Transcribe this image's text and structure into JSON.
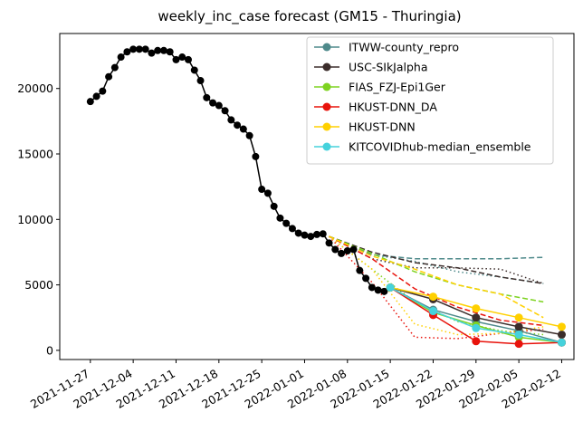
{
  "chart_data": {
    "type": "line",
    "title": "weekly_inc_case forecast (GM15 - Thuringia)",
    "xlabel": "",
    "ylabel": "",
    "x_ticks": [
      "2021-11-27",
      "2021-12-04",
      "2021-12-11",
      "2021-12-18",
      "2021-12-25",
      "2022-01-01",
      "2022-01-08",
      "2022-01-15",
      "2022-01-22",
      "2022-01-29",
      "2022-02-05",
      "2022-02-12"
    ],
    "y_ticks": [
      0,
      5000,
      10000,
      15000,
      20000
    ],
    "xlim": [
      "2021-11-22",
      "2022-02-14"
    ],
    "ylim": [
      -700,
      24200
    ],
    "grid": false,
    "legend_position": "top-right",
    "observed": {
      "color": "#000000",
      "x": [
        "2021-11-27",
        "2021-11-28",
        "2021-11-29",
        "2021-11-30",
        "2021-12-01",
        "2021-12-02",
        "2021-12-03",
        "2021-12-04",
        "2021-12-05",
        "2021-12-06",
        "2021-12-07",
        "2021-12-08",
        "2021-12-09",
        "2021-12-10",
        "2021-12-11",
        "2021-12-12",
        "2021-12-13",
        "2021-12-14",
        "2021-12-15",
        "2021-12-16",
        "2021-12-17",
        "2021-12-18",
        "2021-12-19",
        "2021-12-20",
        "2021-12-21",
        "2021-12-22",
        "2021-12-23",
        "2021-12-24",
        "2021-12-25",
        "2021-12-26",
        "2021-12-27",
        "2021-12-28",
        "2021-12-29",
        "2021-12-30",
        "2021-12-31",
        "2022-01-01",
        "2022-01-02",
        "2022-01-03",
        "2022-01-04",
        "2022-01-05",
        "2022-01-06",
        "2022-01-07",
        "2022-01-08",
        "2022-01-09",
        "2022-01-10",
        "2022-01-11",
        "2022-01-12",
        "2022-01-13",
        "2022-01-14",
        "2022-01-15"
      ],
      "y": [
        19000,
        19400,
        19800,
        20900,
        21600,
        22400,
        22800,
        23000,
        23000,
        23000,
        22700,
        22900,
        22900,
        22800,
        22200,
        22400,
        22200,
        21400,
        20600,
        19300,
        18900,
        18700,
        18300,
        17600,
        17200,
        16900,
        16400,
        14800,
        12300,
        12000,
        11000,
        10100,
        9700,
        9300,
        8950,
        8800,
        8700,
        8850,
        8900,
        8200,
        7700,
        7400,
        7600,
        7700,
        6100,
        5500,
        4800,
        4600,
        4500,
        4800
      ]
    },
    "series": [
      {
        "name": "ITWW-county_repro",
        "color": "#4f8a8b",
        "x": [
          "2022-01-15",
          "2022-01-22",
          "2022-01-29",
          "2022-02-05",
          "2022-02-12"
        ],
        "values": [
          4800,
          3100,
          2200,
          1500,
          600
        ],
        "upper": {
          "x": [
            "2022-01-05",
            "2022-01-12",
            "2022-01-19",
            "2022-01-26",
            "2022-02-02",
            "2022-02-09"
          ],
          "values": [
            8700,
            7300,
            7000,
            7000,
            7000,
            7100
          ]
        },
        "lower": {
          "x": [
            "2022-01-05",
            "2022-01-12",
            "2022-01-19",
            "2022-01-26",
            "2022-02-02",
            "2022-02-09"
          ],
          "values": [
            8700,
            7300,
            6800,
            6000,
            5600,
            5100
          ]
        }
      },
      {
        "name": "USC-SIkJalpha",
        "color": "#3b2d2b",
        "x": [
          "2022-01-15",
          "2022-01-22",
          "2022-01-29",
          "2022-02-05",
          "2022-02-12"
        ],
        "values": [
          4800,
          3900,
          2500,
          1800,
          1200
        ],
        "upper": {
          "x": [
            "2022-01-05",
            "2022-01-12",
            "2022-01-19",
            "2022-01-26",
            "2022-02-02",
            "2022-02-09"
          ],
          "values": [
            8700,
            7500,
            6700,
            6300,
            5600,
            5100
          ]
        },
        "lower": {
          "x": [
            "2022-01-05",
            "2022-01-12",
            "2022-01-19",
            "2022-01-26",
            "2022-02-02",
            "2022-02-09"
          ],
          "values": [
            8700,
            7000,
            6300,
            6300,
            6200,
            5100
          ]
        }
      },
      {
        "name": "FIAS_FZJ-Epi1Ger",
        "color": "#7ed321",
        "x": [
          "2022-01-15",
          "2022-01-22",
          "2022-01-29",
          "2022-02-05",
          "2022-02-12"
        ],
        "values": [
          4800,
          2900,
          1900,
          1000,
          600
        ],
        "upper": {
          "x": [
            "2022-01-05",
            "2022-01-12",
            "2022-01-19",
            "2022-01-26",
            "2022-02-02",
            "2022-02-09"
          ],
          "values": [
            8700,
            7400,
            6000,
            5000,
            4300,
            3700
          ]
        },
        "lower": {
          "x": [
            "2022-01-05",
            "2022-01-12",
            "2022-01-19",
            "2022-01-26",
            "2022-02-02",
            "2022-02-09"
          ],
          "values": [
            8700,
            6200,
            3700,
            2200,
            1500,
            1200
          ]
        }
      },
      {
        "name": "HKUST-DNN_DA",
        "color": "#e8130c",
        "x": [
          "2022-01-15",
          "2022-01-22",
          "2022-01-29",
          "2022-02-05",
          "2022-02-12"
        ],
        "values": [
          4800,
          2700,
          700,
          500,
          600
        ],
        "upper": {
          "x": [
            "2022-01-05",
            "2022-01-12",
            "2022-01-19",
            "2022-01-26",
            "2022-02-02",
            "2022-02-09"
          ],
          "values": [
            8700,
            7000,
            4700,
            3300,
            2300,
            1900
          ]
        },
        "lower": {
          "x": [
            "2022-01-05",
            "2022-01-12",
            "2022-01-19",
            "2022-01-26",
            "2022-02-02",
            "2022-02-09"
          ],
          "values": [
            8700,
            5200,
            1000,
            900,
            1300,
            1600
          ]
        }
      },
      {
        "name": "HKUST-DNN",
        "color": "#ffd000",
        "x": [
          "2022-01-15",
          "2022-01-22",
          "2022-01-29",
          "2022-02-05",
          "2022-02-12"
        ],
        "values": [
          4800,
          4100,
          3200,
          2500,
          1800
        ],
        "upper": {
          "x": [
            "2022-01-05",
            "2022-01-12",
            "2022-01-19",
            "2022-01-26",
            "2022-02-02",
            "2022-02-09"
          ],
          "values": [
            8700,
            7200,
            6200,
            5000,
            4300,
            2500
          ]
        },
        "lower": {
          "x": [
            "2022-01-05",
            "2022-01-12",
            "2022-01-19",
            "2022-01-26",
            "2022-02-02",
            "2022-02-09"
          ],
          "values": [
            8700,
            6200,
            2000,
            1200,
            1300,
            1800
          ]
        }
      },
      {
        "name": "KITCOVIDhub-median_ensemble",
        "color": "#45d2dc",
        "x": [
          "2022-01-15",
          "2022-01-22",
          "2022-01-29",
          "2022-02-05",
          "2022-02-12"
        ],
        "values": [
          4800,
          3000,
          1700,
          1200,
          600
        ],
        "upper": {
          "x": [],
          "values": []
        },
        "lower": {
          "x": [],
          "values": []
        }
      }
    ]
  }
}
